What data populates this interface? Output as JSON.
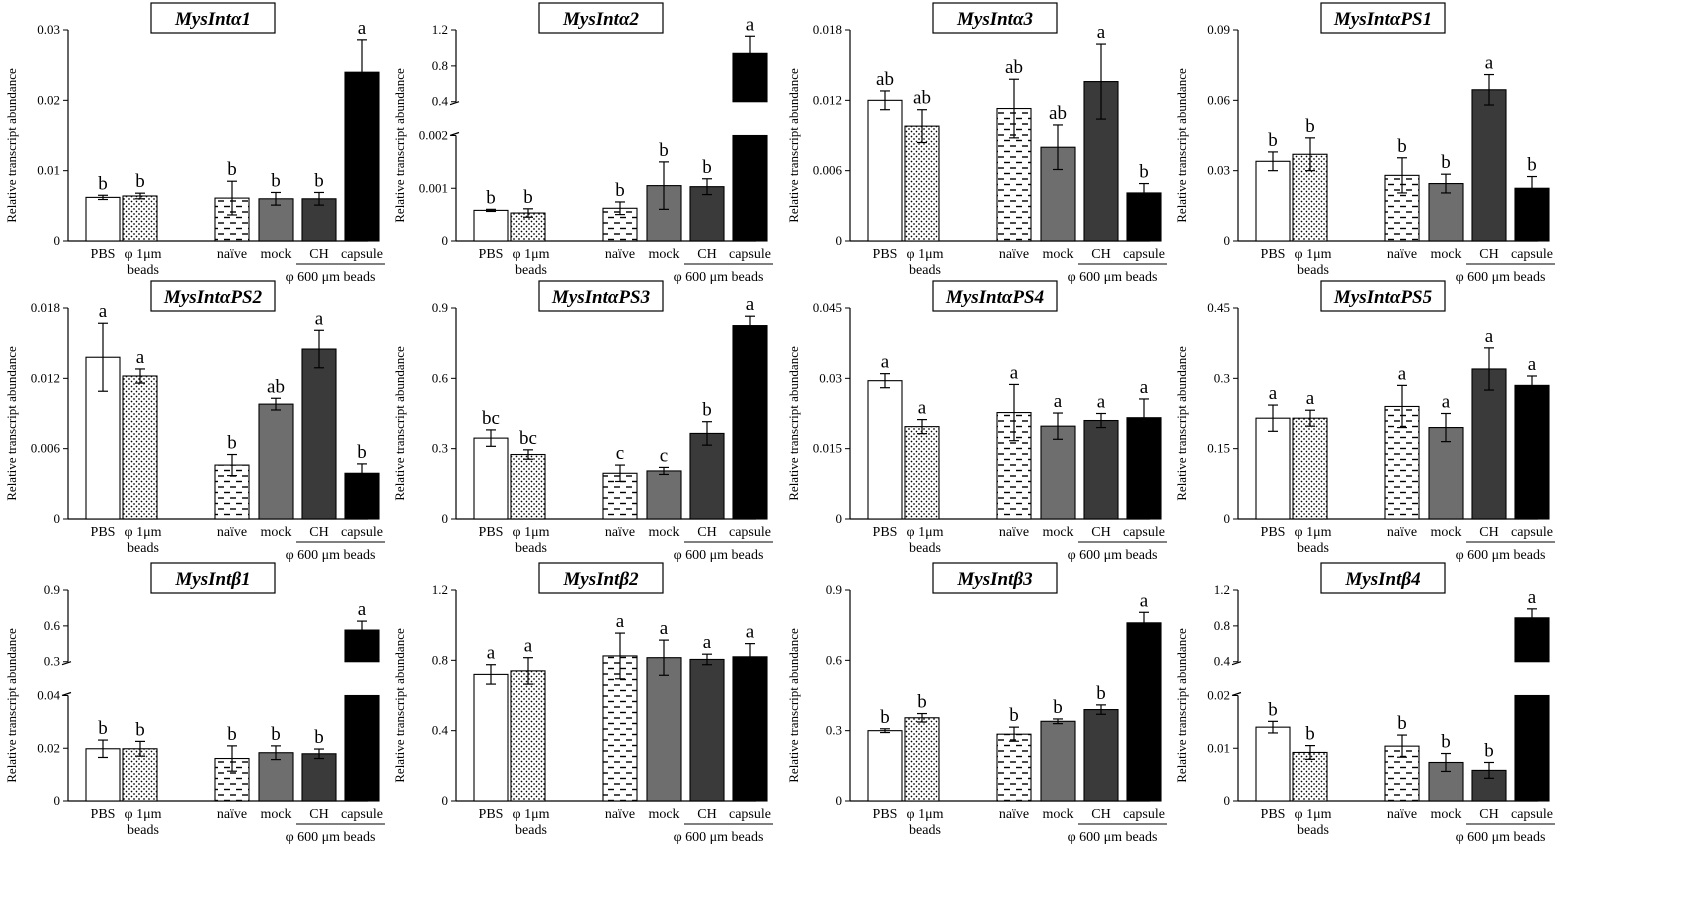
{
  "colors": {
    "PBS": "#ffffff",
    "beads_1um": "#ffffff",
    "naive": "#ffffff",
    "mock": "#6e6e6e",
    "CH": "#3a3a3a",
    "capsule": "#000000"
  },
  "chart_data": [
    {
      "type": "bar",
      "title": "MysIntα1",
      "ylabel": "Relative transcript abundance",
      "categories": [
        "PBS",
        "φ 1μm beads",
        "naïve",
        "mock",
        "CH",
        "capsule"
      ],
      "group_label": "φ 600 μm beads",
      "yticks": [
        "0",
        "0.01",
        "0.02",
        "0.03"
      ],
      "ylim": [
        0,
        0.03
      ],
      "values": [
        0.0062,
        0.0064,
        0.0061,
        0.006,
        0.006,
        0.024
      ],
      "errors": [
        0.0003,
        0.0004,
        0.0024,
        0.0009,
        0.0009,
        0.0046
      ],
      "significance": [
        "b",
        "b",
        "b",
        "b",
        "b",
        "a"
      ]
    },
    {
      "type": "bar",
      "title": "MysIntα2",
      "ylabel": "Relative transcript abundance",
      "categories": [
        "PBS",
        "φ 1μm beads",
        "naïve",
        "mock",
        "CH",
        "capsule"
      ],
      "group_label": "φ 600 μm beads",
      "yticks": [
        "0",
        "0.001",
        "0.002",
        "0.4",
        "0.8",
        "1.2"
      ],
      "axis_break": {
        "low_max": 0.002,
        "high_min": 0.4,
        "high_max": 1.2
      },
      "values": [
        0.00058,
        0.00053,
        0.00062,
        0.00105,
        0.00103,
        0.94
      ],
      "errors": [
        2e-05,
        8e-05,
        0.00012,
        0.00045,
        0.00015,
        0.19
      ],
      "significance": [
        "b",
        "b",
        "b",
        "b",
        "b",
        "a"
      ]
    },
    {
      "type": "bar",
      "title": "MysIntα3",
      "ylabel": "Relative transcript abundance",
      "categories": [
        "PBS",
        "φ 1μm beads",
        "naïve",
        "mock",
        "CH",
        "capsule"
      ],
      "group_label": "φ 600 μm beads",
      "yticks": [
        "0",
        "0.006",
        "0.012",
        "0.018"
      ],
      "ylim": [
        0,
        0.018
      ],
      "values": [
        0.012,
        0.0098,
        0.0113,
        0.008,
        0.0136,
        0.0041
      ],
      "errors": [
        0.0008,
        0.0014,
        0.0025,
        0.0019,
        0.0032,
        0.0008
      ],
      "significance": [
        "ab",
        "ab",
        "ab",
        "ab",
        "a",
        "b"
      ]
    },
    {
      "type": "bar",
      "title": "MysIntαPS1",
      "ylabel": "Relative transcript abundance",
      "categories": [
        "PBS",
        "φ 1μm beads",
        "naïve",
        "mock",
        "CH",
        "capsule"
      ],
      "group_label": "φ 600 μm beads",
      "yticks": [
        "0",
        "0.03",
        "0.06",
        "0.09"
      ],
      "ylim": [
        0,
        0.09
      ],
      "values": [
        0.034,
        0.037,
        0.028,
        0.0245,
        0.0645,
        0.0225
      ],
      "errors": [
        0.004,
        0.007,
        0.0075,
        0.004,
        0.0065,
        0.005
      ],
      "significance": [
        "b",
        "b",
        "b",
        "b",
        "a",
        "b"
      ]
    },
    {
      "type": "bar",
      "title": "MysIntαPS2",
      "ylabel": "Relative transcript abundance",
      "categories": [
        "PBS",
        "φ 1μm beads",
        "naïve",
        "mock",
        "CH",
        "capsule"
      ],
      "group_label": "φ 600 μm beads",
      "yticks": [
        "0",
        "0.006",
        "0.012",
        "0.018"
      ],
      "ylim": [
        0,
        0.018
      ],
      "values": [
        0.0138,
        0.0122,
        0.0046,
        0.0098,
        0.0145,
        0.0039
      ],
      "errors": [
        0.0029,
        0.0006,
        0.0009,
        0.0005,
        0.0016,
        0.0008
      ],
      "significance": [
        "a",
        "a",
        "b",
        "ab",
        "a",
        "b"
      ]
    },
    {
      "type": "bar",
      "title": "MysIntαPS3",
      "ylabel": "Relative transcript abundance",
      "categories": [
        "PBS",
        "φ 1μm beads",
        "naïve",
        "mock",
        "CH",
        "capsule"
      ],
      "group_label": "φ 600 μm beads",
      "yticks": [
        "0",
        "0.3",
        "0.6",
        "0.9"
      ],
      "ylim": [
        0,
        0.9
      ],
      "values": [
        0.345,
        0.275,
        0.195,
        0.205,
        0.365,
        0.825
      ],
      "errors": [
        0.035,
        0.02,
        0.035,
        0.015,
        0.05,
        0.04
      ],
      "significance": [
        "bc",
        "bc",
        "c",
        "c",
        "b",
        "a"
      ]
    },
    {
      "type": "bar",
      "title": "MysIntαPS4",
      "ylabel": "Relative transcript abundance",
      "categories": [
        "PBS",
        "φ 1μm beads",
        "naïve",
        "mock",
        "CH",
        "capsule"
      ],
      "group_label": "φ 600 μm beads",
      "yticks": [
        "0",
        "0.015",
        "0.03",
        "0.045"
      ],
      "ylim": [
        0,
        0.045
      ],
      "values": [
        0.0295,
        0.0197,
        0.0227,
        0.0198,
        0.021,
        0.0216
      ],
      "errors": [
        0.0015,
        0.0015,
        0.006,
        0.0028,
        0.0015,
        0.004
      ],
      "significance": [
        "a",
        "a",
        "a",
        "a",
        "a",
        "a"
      ]
    },
    {
      "type": "bar",
      "title": "MysIntαPS5",
      "ylabel": "Relative transcript abundance",
      "categories": [
        "PBS",
        "φ 1μm beads",
        "naïve",
        "mock",
        "CH",
        "capsule"
      ],
      "group_label": "φ 600 μm beads",
      "yticks": [
        "0",
        "0.15",
        "0.3",
        "0.45"
      ],
      "ylim": [
        0,
        0.45
      ],
      "values": [
        0.215,
        0.215,
        0.24,
        0.195,
        0.32,
        0.285
      ],
      "errors": [
        0.028,
        0.017,
        0.045,
        0.03,
        0.045,
        0.02
      ],
      "significance": [
        "a",
        "a",
        "a",
        "a",
        "a",
        "a"
      ]
    },
    {
      "type": "bar",
      "title": "MysIntβ1",
      "ylabel": "Relative transcript abundance",
      "categories": [
        "PBS",
        "φ 1μm beads",
        "naïve",
        "mock",
        "CH",
        "capsule"
      ],
      "group_label": "φ 600 μm beads",
      "yticks": [
        "0",
        "0.02",
        "0.04",
        "0.3",
        "0.6",
        "0.9"
      ],
      "axis_break": {
        "low_max": 0.04,
        "high_min": 0.3,
        "high_max": 0.9
      },
      "values": [
        0.0198,
        0.0198,
        0.0161,
        0.0183,
        0.0179,
        0.565
      ],
      "errors": [
        0.0033,
        0.0028,
        0.0048,
        0.0026,
        0.0018,
        0.075
      ],
      "significance": [
        "b",
        "b",
        "b",
        "b",
        "b",
        "a"
      ]
    },
    {
      "type": "bar",
      "title": "MysIntβ2",
      "ylabel": "Relative transcript abundance",
      "categories": [
        "PBS",
        "φ 1μm beads",
        "naïve",
        "mock",
        "CH",
        "capsule"
      ],
      "group_label": "φ 600 μm beads",
      "yticks": [
        "0",
        "0.4",
        "0.8",
        "1.2"
      ],
      "ylim": [
        0,
        1.2
      ],
      "values": [
        0.72,
        0.74,
        0.825,
        0.815,
        0.805,
        0.82
      ],
      "errors": [
        0.055,
        0.075,
        0.13,
        0.1,
        0.03,
        0.075
      ],
      "significance": [
        "a",
        "a",
        "a",
        "a",
        "a",
        "a"
      ]
    },
    {
      "type": "bar",
      "title": "MysIntβ3",
      "ylabel": "Relative transcript abundance",
      "categories": [
        "PBS",
        "φ 1μm beads",
        "naïve",
        "mock",
        "CH",
        "capsule"
      ],
      "group_label": "φ 600 μm beads",
      "yticks": [
        "0",
        "0.3",
        "0.6",
        "0.9"
      ],
      "ylim": [
        0,
        0.9
      ],
      "values": [
        0.3,
        0.355,
        0.285,
        0.34,
        0.39,
        0.76
      ],
      "errors": [
        0.008,
        0.018,
        0.03,
        0.01,
        0.02,
        0.045
      ],
      "significance": [
        "b",
        "b",
        "b",
        "b",
        "b",
        "a"
      ]
    },
    {
      "type": "bar",
      "title": "MysIntβ4",
      "ylabel": "Relative transcript abundance",
      "categories": [
        "PBS",
        "φ 1μm beads",
        "naïve",
        "mock",
        "CH",
        "capsule"
      ],
      "group_label": "φ 600 μm beads",
      "yticks": [
        "0",
        "0.01",
        "0.02",
        "0.4",
        "0.8",
        "1.2"
      ],
      "axis_break": {
        "low_max": 0.02,
        "high_min": 0.4,
        "high_max": 1.2
      },
      "values": [
        0.014,
        0.0092,
        0.0104,
        0.0073,
        0.0058,
        0.89
      ],
      "errors": [
        0.0011,
        0.0013,
        0.0021,
        0.0017,
        0.0015,
        0.1
      ],
      "significance": [
        "b",
        "b",
        "b",
        "b",
        "b",
        "a"
      ]
    }
  ]
}
